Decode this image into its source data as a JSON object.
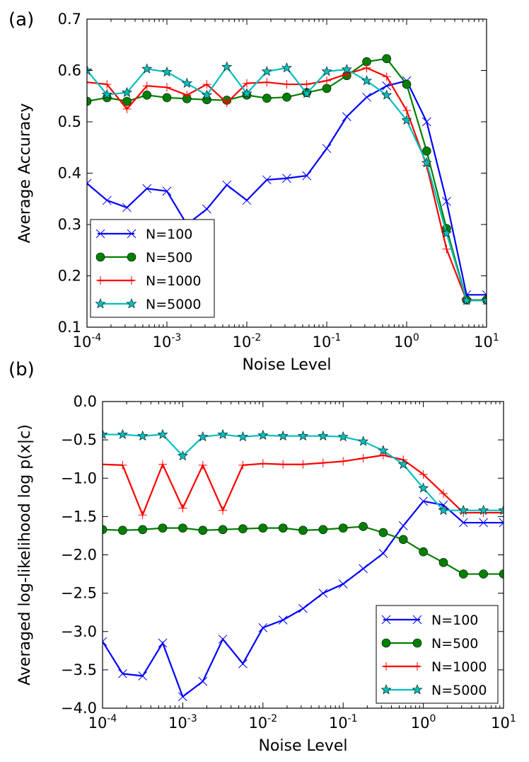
{
  "chart_data": [
    {
      "panel_label": "(a)",
      "type": "line",
      "xscale": "log",
      "xlim": [
        0.0001,
        10
      ],
      "ylim": [
        0.1,
        0.7
      ],
      "xlabel": "Noise Level",
      "ylabel": "Average Accuracy",
      "xticks": [
        {
          "v": 0.0001,
          "base": "10",
          "exp": "-4"
        },
        {
          "v": 0.001,
          "base": "10",
          "exp": "-3"
        },
        {
          "v": 0.01,
          "base": "10",
          "exp": "-2"
        },
        {
          "v": 0.1,
          "base": "10",
          "exp": "-1"
        },
        {
          "v": 1,
          "base": "10",
          "exp": "0"
        },
        {
          "v": 10,
          "base": "10",
          "exp": "1"
        }
      ],
      "yticks": [
        {
          "v": 0.1,
          "label": "0.1"
        },
        {
          "v": 0.2,
          "label": "0.2"
        },
        {
          "v": 0.3,
          "label": "0.3"
        },
        {
          "v": 0.4,
          "label": "0.4"
        },
        {
          "v": 0.5,
          "label": "0.5"
        },
        {
          "v": 0.6,
          "label": "0.6"
        },
        {
          "v": 0.7,
          "label": "0.7"
        }
      ],
      "legend_position": "lower-left",
      "x": [
        0.0001,
        0.000178,
        0.000316,
        0.000562,
        0.001,
        0.00178,
        0.00316,
        0.00562,
        0.01,
        0.0178,
        0.0316,
        0.0562,
        0.1,
        0.178,
        0.316,
        0.562,
        1.0,
        1.78,
        3.16,
        5.62,
        10.0
      ],
      "series": [
        {
          "name": "N=100",
          "color": "#0000ff",
          "marker": "x",
          "values": [
            0.38,
            0.347,
            0.333,
            0.37,
            0.365,
            0.3,
            0.33,
            0.377,
            0.347,
            0.387,
            0.39,
            0.395,
            0.448,
            0.51,
            0.548,
            0.57,
            0.58,
            0.5,
            0.345,
            0.163,
            0.163
          ]
        },
        {
          "name": "N=500",
          "color": "#008000",
          "marker": "o",
          "values": [
            0.54,
            0.547,
            0.54,
            0.552,
            0.547,
            0.545,
            0.543,
            0.542,
            0.552,
            0.546,
            0.548,
            0.557,
            0.565,
            0.59,
            0.617,
            0.623,
            0.573,
            0.443,
            0.292,
            0.153,
            0.153
          ]
        },
        {
          "name": "N=1000",
          "color": "#ff0000",
          "marker": "+",
          "values": [
            0.577,
            0.573,
            0.525,
            0.57,
            0.567,
            0.552,
            0.573,
            0.537,
            0.575,
            0.577,
            0.573,
            0.573,
            0.58,
            0.593,
            0.605,
            0.588,
            0.522,
            0.415,
            0.252,
            0.152,
            0.152
          ]
        },
        {
          "name": "N=5000",
          "color": "#00bfbf",
          "marker": "*",
          "values": [
            0.6,
            0.553,
            0.557,
            0.603,
            0.597,
            0.575,
            0.552,
            0.607,
            0.555,
            0.598,
            0.605,
            0.555,
            0.598,
            0.602,
            0.58,
            0.552,
            0.503,
            0.42,
            0.283,
            0.152,
            0.152
          ]
        }
      ]
    },
    {
      "panel_label": "(b)",
      "type": "line",
      "xscale": "log",
      "xlim": [
        0.0001,
        10
      ],
      "ylim": [
        -4.0,
        0.0
      ],
      "xlabel": "Noise Level",
      "ylabel": "Averaged log-likelihood log p(x|c)",
      "xticks": [
        {
          "v": 0.0001,
          "base": "10",
          "exp": "-4"
        },
        {
          "v": 0.001,
          "base": "10",
          "exp": "-3"
        },
        {
          "v": 0.01,
          "base": "10",
          "exp": "-2"
        },
        {
          "v": 0.1,
          "base": "10",
          "exp": "-1"
        },
        {
          "v": 1,
          "base": "10",
          "exp": "0"
        },
        {
          "v": 10,
          "base": "10",
          "exp": "1"
        }
      ],
      "yticks": [
        {
          "v": 0.0,
          "label": "0.0"
        },
        {
          "v": -0.5,
          "label": "−0.5"
        },
        {
          "v": -1.0,
          "label": "−1.0"
        },
        {
          "v": -1.5,
          "label": "−1.5"
        },
        {
          "v": -2.0,
          "label": "−2.0"
        },
        {
          "v": -2.5,
          "label": "−2.5"
        },
        {
          "v": -3.0,
          "label": "−3.0"
        },
        {
          "v": -3.5,
          "label": "−3.5"
        },
        {
          "v": -4.0,
          "label": "−4.0"
        }
      ],
      "legend_position": "lower-right",
      "x": [
        0.0001,
        0.000178,
        0.000316,
        0.000562,
        0.001,
        0.00178,
        0.00316,
        0.00562,
        0.01,
        0.0178,
        0.0316,
        0.0562,
        0.1,
        0.178,
        0.316,
        0.562,
        1.0,
        1.78,
        3.16,
        5.62,
        10.0
      ],
      "series": [
        {
          "name": "N=100",
          "color": "#0000ff",
          "marker": "x",
          "values": [
            -3.13,
            -3.55,
            -3.58,
            -3.15,
            -3.85,
            -3.65,
            -3.1,
            -3.42,
            -2.95,
            -2.85,
            -2.7,
            -2.5,
            -2.38,
            -2.18,
            -1.98,
            -1.62,
            -1.3,
            -1.35,
            -1.58,
            -1.58,
            -1.58
          ]
        },
        {
          "name": "N=500",
          "color": "#008000",
          "marker": "o",
          "values": [
            -1.67,
            -1.68,
            -1.67,
            -1.65,
            -1.65,
            -1.68,
            -1.67,
            -1.66,
            -1.65,
            -1.65,
            -1.68,
            -1.67,
            -1.65,
            -1.63,
            -1.71,
            -1.8,
            -1.96,
            -2.1,
            -2.25,
            -2.25,
            -2.25
          ]
        },
        {
          "name": "N=1000",
          "color": "#ff0000",
          "marker": "+",
          "values": [
            -0.82,
            -0.83,
            -1.48,
            -0.82,
            -1.39,
            -0.83,
            -1.42,
            -0.83,
            -0.81,
            -0.82,
            -0.82,
            -0.8,
            -0.78,
            -0.74,
            -0.7,
            -0.76,
            -0.95,
            -1.2,
            -1.45,
            -1.45,
            -1.45
          ]
        },
        {
          "name": "N=5000",
          "color": "#00bfbf",
          "marker": "*",
          "values": [
            -0.43,
            -0.43,
            -0.45,
            -0.43,
            -0.71,
            -0.46,
            -0.43,
            -0.46,
            -0.44,
            -0.45,
            -0.45,
            -0.45,
            -0.46,
            -0.52,
            -0.64,
            -0.82,
            -1.13,
            -1.42,
            -1.42,
            -1.42,
            -1.42
          ]
        }
      ]
    }
  ]
}
